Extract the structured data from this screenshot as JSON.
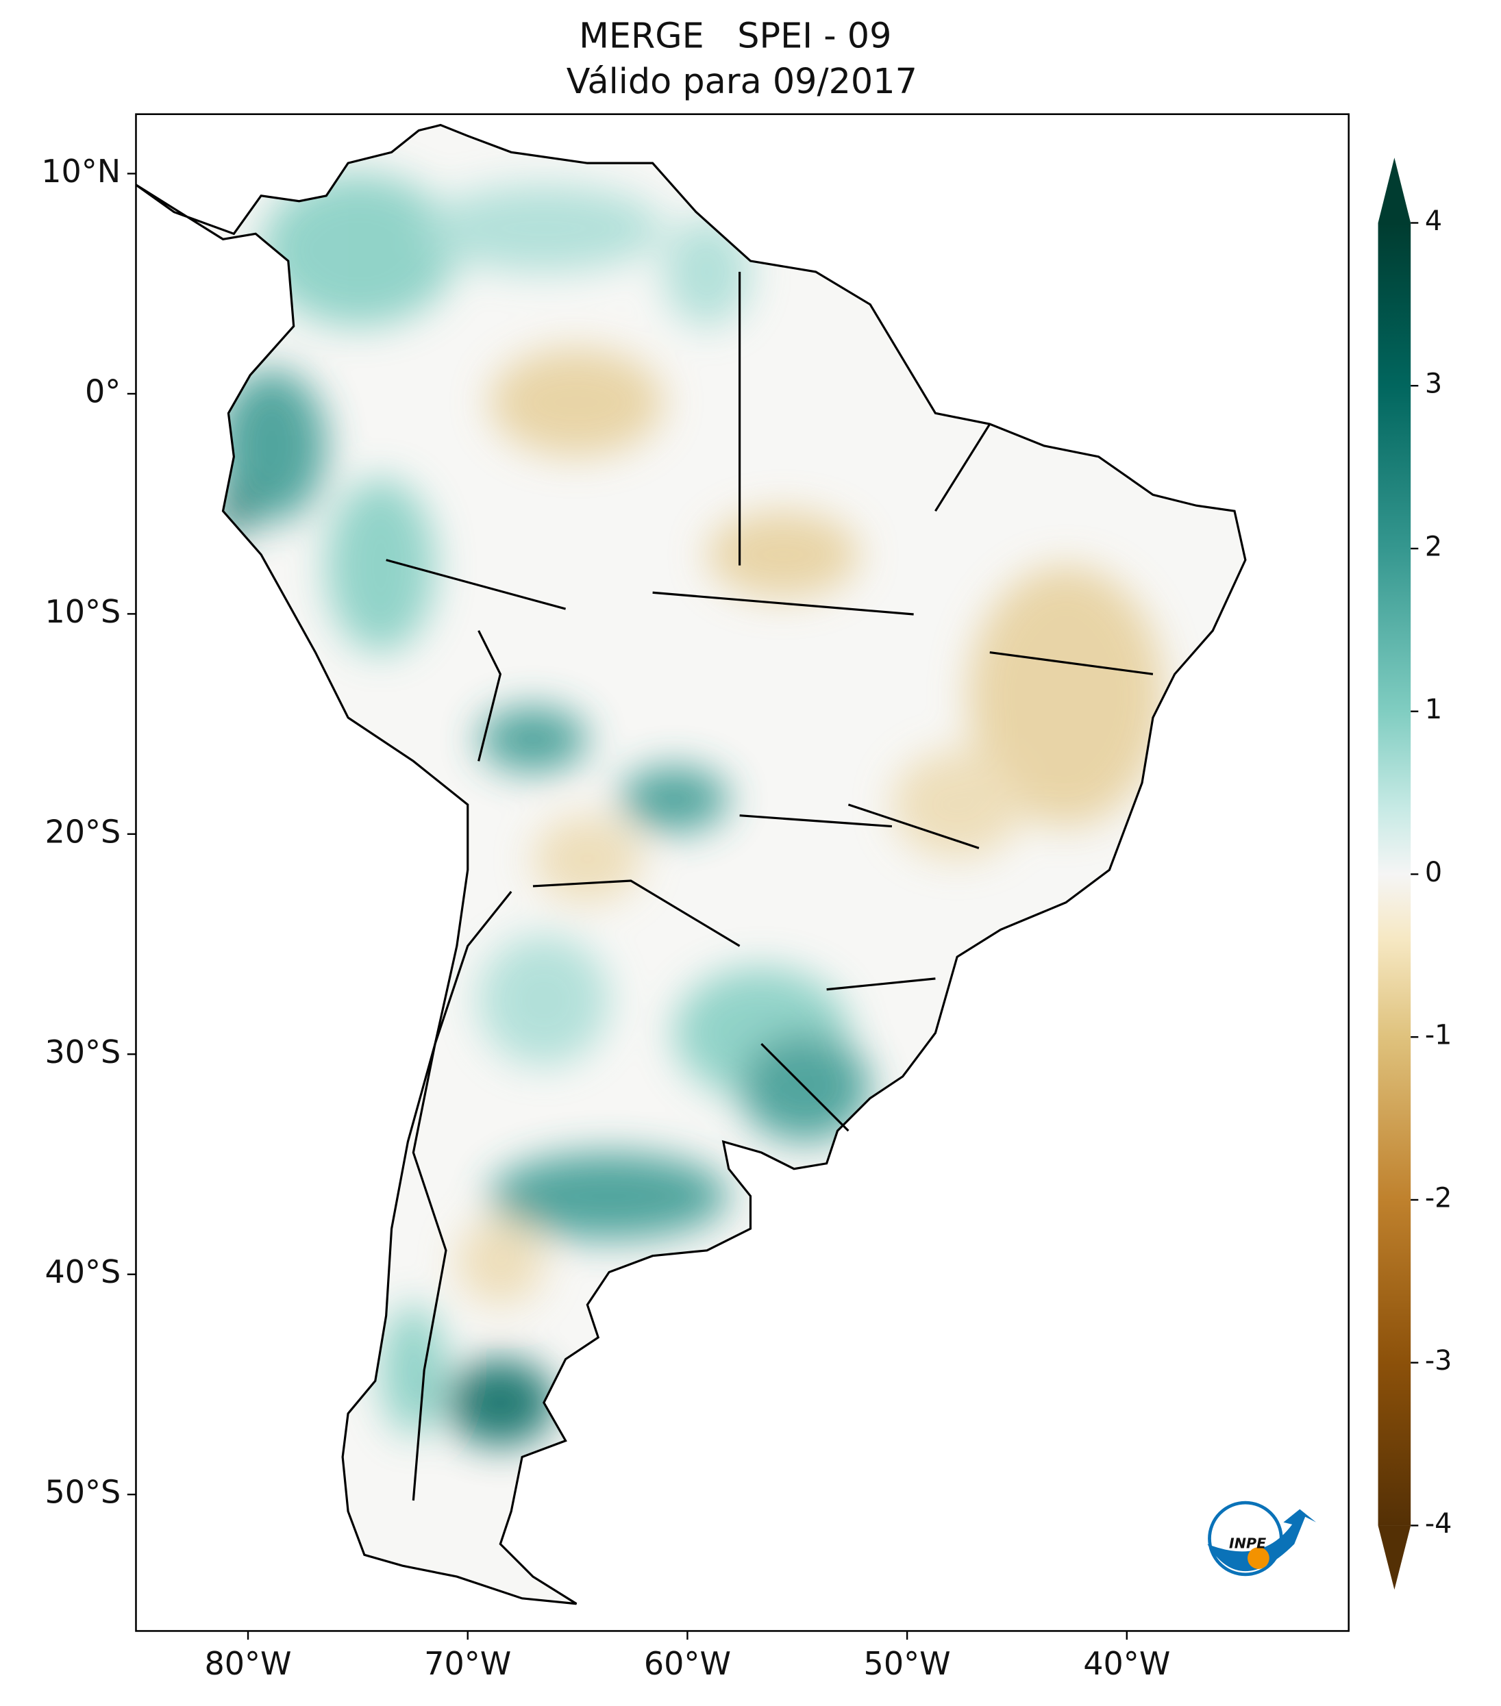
{
  "title": "MERGE   SPEI - 09",
  "subtitle": "Válido para 09/2017",
  "map": {
    "xlim": [
      -85.1,
      -29.9
    ],
    "ylim": [
      -56.2,
      12.7
    ],
    "xticks": [
      {
        "value": -80,
        "label": "80°W"
      },
      {
        "value": -70,
        "label": "70°W"
      },
      {
        "value": -60,
        "label": "60°W"
      },
      {
        "value": -50,
        "label": "50°W"
      },
      {
        "value": -40,
        "label": "40°W"
      }
    ],
    "yticks": [
      {
        "value": 10,
        "label": "10°N"
      },
      {
        "value": 0,
        "label": "0°"
      },
      {
        "value": -10,
        "label": "10°S"
      },
      {
        "value": -20,
        "label": "20°S"
      },
      {
        "value": -30,
        "label": "30°S"
      },
      {
        "value": -40,
        "label": "40°S"
      },
      {
        "value": -50,
        "label": "50°S"
      }
    ]
  },
  "colorbar": {
    "lim": [
      -4,
      4
    ],
    "ticks": [
      4,
      3,
      2,
      1,
      0,
      -1,
      -2,
      -3,
      -4
    ],
    "colormap": "BrBG"
  },
  "logo": "INPE"
}
